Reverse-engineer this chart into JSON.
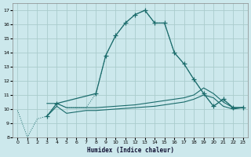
{
  "xlabel": "Humidex (Indice chaleur)",
  "bg_color": "#cce8ec",
  "grid_color": "#aacccc",
  "line_color": "#1a6b6b",
  "xlim": [
    -0.5,
    23.5
  ],
  "ylim": [
    8,
    17.5
  ],
  "yticks": [
    8,
    9,
    10,
    11,
    12,
    13,
    14,
    15,
    16,
    17
  ],
  "xticks": [
    0,
    1,
    2,
    3,
    4,
    5,
    6,
    7,
    8,
    9,
    10,
    11,
    12,
    13,
    14,
    15,
    16,
    17,
    18,
    19,
    20,
    21,
    22,
    23
  ],
  "dotted_x": [
    0,
    1,
    2,
    3,
    4,
    5,
    6,
    7,
    8,
    9,
    10,
    11,
    12,
    13,
    14,
    15,
    16,
    17,
    18,
    19,
    20,
    21,
    22,
    23
  ],
  "dotted_y": [
    9.9,
    8.0,
    9.3,
    9.5,
    10.4,
    10.1,
    10.1,
    10.1,
    11.1,
    13.8,
    15.2,
    16.1,
    16.7,
    17.0,
    16.1,
    16.1,
    14.0,
    13.2,
    12.1,
    11.1,
    10.2,
    10.7,
    10.1,
    10.1
  ],
  "solid_x": [
    3,
    4,
    8,
    9,
    10,
    11,
    12,
    13,
    14,
    15,
    16,
    17,
    18,
    19,
    20,
    21,
    22,
    23
  ],
  "solid_y": [
    9.5,
    10.4,
    11.1,
    13.8,
    15.2,
    16.1,
    16.7,
    17.0,
    16.1,
    16.1,
    14.0,
    13.2,
    12.1,
    11.1,
    10.2,
    10.7,
    10.1,
    10.1
  ],
  "flat1_x": [
    3,
    4,
    5,
    6,
    7,
    8,
    9,
    10,
    11,
    12,
    13,
    14,
    15,
    16,
    17,
    18,
    19,
    20,
    21,
    22,
    23
  ],
  "flat1_y": [
    10.4,
    10.4,
    10.1,
    10.1,
    10.1,
    10.1,
    10.15,
    10.2,
    10.25,
    10.3,
    10.4,
    10.5,
    10.6,
    10.7,
    10.8,
    11.0,
    11.5,
    11.1,
    10.5,
    10.1,
    10.1
  ],
  "flat2_x": [
    3,
    4,
    5,
    6,
    7,
    8,
    9,
    10,
    11,
    12,
    13,
    14,
    15,
    16,
    17,
    18,
    19,
    20,
    21,
    22,
    23
  ],
  "flat2_y": [
    9.5,
    10.2,
    9.7,
    9.8,
    9.9,
    9.9,
    9.95,
    10.0,
    10.05,
    10.1,
    10.15,
    10.2,
    10.3,
    10.4,
    10.5,
    10.7,
    11.0,
    10.8,
    10.2,
    10.0,
    10.1
  ]
}
